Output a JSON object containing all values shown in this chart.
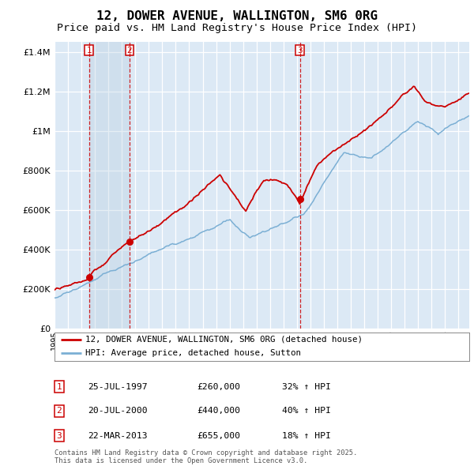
{
  "title": "12, DOWER AVENUE, WALLINGTON, SM6 0RG",
  "subtitle": "Price paid vs. HM Land Registry's House Price Index (HPI)",
  "title_fontsize": 11.5,
  "subtitle_fontsize": 9.5,
  "bg_color": "#dce9f5",
  "grid_color": "#ffffff",
  "sale_line_color": "#cc0000",
  "hpi_line_color": "#7bafd4",
  "ylim": [
    0,
    1450000
  ],
  "yticks": [
    0,
    200000,
    400000,
    600000,
    800000,
    1000000,
    1200000,
    1400000
  ],
  "ytick_labels": [
    "£0",
    "£200K",
    "£400K",
    "£600K",
    "£800K",
    "£1M",
    "£1.2M",
    "£1.4M"
  ],
  "sale_events": [
    {
      "label": "1",
      "date_num": 1997.56,
      "price": 260000
    },
    {
      "label": "2",
      "date_num": 2000.56,
      "price": 440000
    },
    {
      "label": "3",
      "date_num": 2013.22,
      "price": 655000
    }
  ],
  "legend_sale": "12, DOWER AVENUE, WALLINGTON, SM6 0RG (detached house)",
  "legend_hpi": "HPI: Average price, detached house, Sutton",
  "table_rows": [
    {
      "num": "1",
      "date": "25-JUL-1997",
      "price": "£260,000",
      "change": "32% ↑ HPI"
    },
    {
      "num": "2",
      "date": "20-JUL-2000",
      "price": "£440,000",
      "change": "40% ↑ HPI"
    },
    {
      "num": "3",
      "date": "22-MAR-2013",
      "price": "£655,000",
      "change": "18% ↑ HPI"
    }
  ],
  "footnote": "Contains HM Land Registry data © Crown copyright and database right 2025.\nThis data is licensed under the Open Government Licence v3.0.",
  "xmin": 1995.0,
  "xmax": 2025.8
}
